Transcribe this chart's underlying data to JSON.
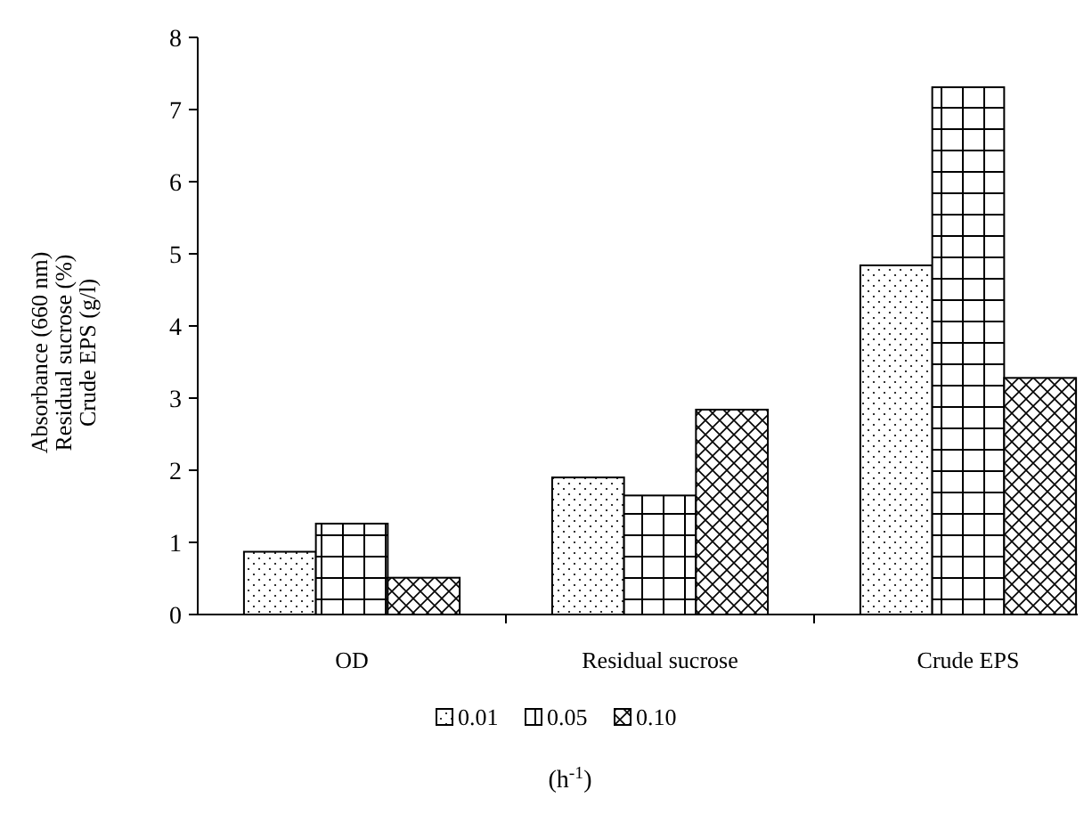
{
  "chart_data": {
    "type": "bar",
    "ylabel": "Absorbance (660 nm)\nResidual sucrose (%)\nCrude EPS (g/l)",
    "legend_title": "(h$^{-1}$)",
    "categories": [
      "OD",
      "Residual sucrose",
      "Crude EPS"
    ],
    "series": [
      {
        "name": "0.01",
        "color": "#000000",
        "values": [
          0.87,
          1.9,
          4.84
        ]
      },
      {
        "name": "0.05",
        "color": "#000000",
        "values": [
          1.26,
          1.65,
          7.31
        ]
      },
      {
        "name": "0.10",
        "color": "#000000",
        "values": [
          0.51,
          2.84,
          3.28
        ]
      }
    ],
    "ylim": [
      0,
      8
    ],
    "yticks": [
      0,
      1,
      2,
      3,
      4,
      5,
      6,
      7,
      8
    ],
    "legend": "bottom",
    "grid": false
  }
}
